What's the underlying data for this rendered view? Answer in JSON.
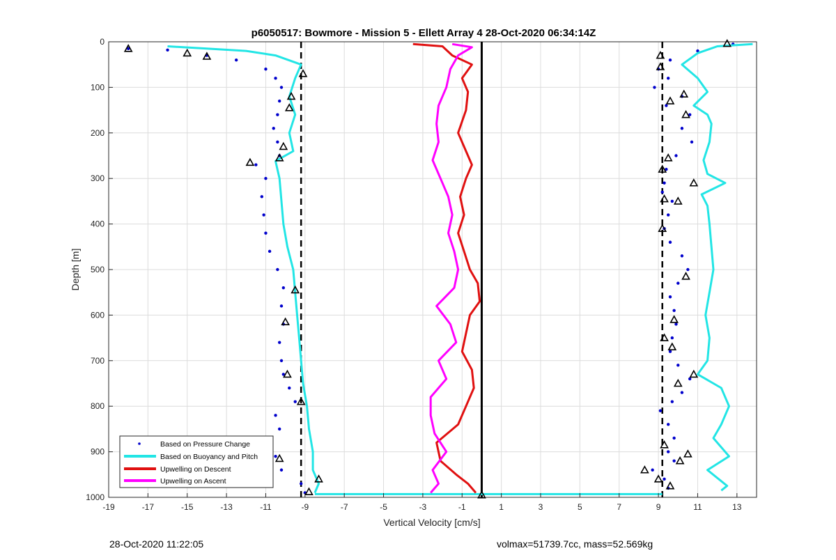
{
  "chart_data": {
    "type": "line",
    "title": "p6050517: Bowmore - Mission 5 - Ellett Array 4 28-Oct-2020 06:34:14Z",
    "xlabel": "Vertical Velocity [cm/s]",
    "ylabel": "Depth [m]",
    "xlim": [
      -19,
      14
    ],
    "ylim": [
      0,
      1000
    ],
    "y_reversed": true,
    "grid": true,
    "legend_position": "bottom-left",
    "xticks": [
      -19,
      -17,
      -15,
      -13,
      -11,
      -9,
      -7,
      -5,
      -3,
      -1,
      1,
      3,
      5,
      7,
      9,
      11,
      13
    ],
    "xtick_labels": [
      "-19",
      "-17",
      "-15",
      "-13",
      "-11",
      "-9",
      "-7",
      "-5",
      "-3",
      "-1",
      "1",
      "3",
      "5",
      "7",
      "9",
      "11",
      "13"
    ],
    "yticks": [
      0,
      100,
      200,
      300,
      400,
      500,
      600,
      700,
      800,
      900,
      1000
    ],
    "ytick_labels": [
      "0",
      "100",
      "200",
      "300",
      "400",
      "500",
      "600",
      "700",
      "800",
      "900",
      "1000"
    ],
    "reference_lines": [
      {
        "x": -9.2,
        "style": "dashed",
        "color": "#000000"
      },
      {
        "x": 9.2,
        "style": "dashed",
        "color": "#000000"
      },
      {
        "x": 0,
        "style": "solid",
        "color": "#000000"
      }
    ],
    "series": [
      {
        "name": "Based on Pressure Change",
        "kind": "points",
        "color": "#0000cc",
        "descent": [
          [
            -18,
            15
          ],
          [
            -16,
            18
          ],
          [
            -14,
            30
          ],
          [
            -12.5,
            40
          ],
          [
            -11,
            60
          ],
          [
            -10.5,
            80
          ],
          [
            -10.2,
            100
          ],
          [
            -10.3,
            130
          ],
          [
            -10.4,
            160
          ],
          [
            -10.6,
            190
          ],
          [
            -10.4,
            220
          ],
          [
            -10.3,
            250
          ],
          [
            -11.5,
            270
          ],
          [
            -11,
            300
          ],
          [
            -11.2,
            340
          ],
          [
            -11.1,
            380
          ],
          [
            -11,
            420
          ],
          [
            -10.8,
            460
          ],
          [
            -10.4,
            500
          ],
          [
            -10.1,
            540
          ],
          [
            -10.2,
            580
          ],
          [
            -10.1,
            620
          ],
          [
            -10.3,
            660
          ],
          [
            -10.2,
            700
          ],
          [
            -10.1,
            730
          ],
          [
            -9.8,
            760
          ],
          [
            -9.5,
            790
          ],
          [
            -10.5,
            820
          ],
          [
            -10.3,
            850
          ],
          [
            -10.9,
            880
          ],
          [
            -10.5,
            910
          ],
          [
            -10.2,
            940
          ],
          [
            -9.2,
            970
          ],
          [
            -9,
            990
          ]
        ],
        "ascent": [
          [
            12.8,
            5
          ],
          [
            11,
            20
          ],
          [
            9.6,
            40
          ],
          [
            9,
            60
          ],
          [
            9.5,
            80
          ],
          [
            8.8,
            100
          ],
          [
            10.2,
            120
          ],
          [
            9.4,
            140
          ],
          [
            10.6,
            160
          ],
          [
            10.2,
            190
          ],
          [
            10.7,
            220
          ],
          [
            9.9,
            250
          ],
          [
            9.4,
            280
          ],
          [
            9.3,
            310
          ],
          [
            9.2,
            330
          ],
          [
            9.7,
            350
          ],
          [
            9.5,
            380
          ],
          [
            9.3,
            410
          ],
          [
            9.6,
            440
          ],
          [
            10.2,
            470
          ],
          [
            10.5,
            500
          ],
          [
            10,
            530
          ],
          [
            9.6,
            560
          ],
          [
            9.8,
            590
          ],
          [
            9.9,
            620
          ],
          [
            9.7,
            650
          ],
          [
            9.6,
            680
          ],
          [
            10,
            710
          ],
          [
            10.6,
            740
          ],
          [
            10.2,
            770
          ],
          [
            9.7,
            790
          ],
          [
            9.1,
            810
          ],
          [
            9.5,
            840
          ],
          [
            9.8,
            870
          ],
          [
            9.5,
            900
          ],
          [
            9.8,
            920
          ],
          [
            8.7,
            940
          ],
          [
            9.3,
            960
          ],
          [
            9.5,
            980
          ]
        ]
      },
      {
        "name": "Based on Buoyancy and Pitch",
        "kind": "line",
        "color": "#22e5e5",
        "descent": [
          [
            -16,
            10
          ],
          [
            -14,
            15
          ],
          [
            -12,
            20
          ],
          [
            -10.5,
            30
          ],
          [
            -9.2,
            50
          ],
          [
            -9.5,
            80
          ],
          [
            -9.8,
            120
          ],
          [
            -9.5,
            160
          ],
          [
            -9.8,
            200
          ],
          [
            -9.6,
            240
          ],
          [
            -10.5,
            262
          ],
          [
            -10.3,
            300
          ],
          [
            -10.2,
            350
          ],
          [
            -10.1,
            400
          ],
          [
            -9.9,
            450
          ],
          [
            -9.6,
            500
          ],
          [
            -9.5,
            550
          ],
          [
            -9.4,
            600
          ],
          [
            -9.3,
            650
          ],
          [
            -9.2,
            700
          ],
          [
            -9.1,
            750
          ],
          [
            -8.9,
            800
          ],
          [
            -8.8,
            850
          ],
          [
            -8.6,
            900
          ],
          [
            -8.6,
            940
          ],
          [
            -8.3,
            970
          ],
          [
            -8.5,
            990
          ]
        ],
        "ascent": [
          [
            13.8,
            5
          ],
          [
            12,
            10
          ],
          [
            11,
            25
          ],
          [
            10.2,
            50
          ],
          [
            11,
            80
          ],
          [
            11.5,
            110
          ],
          [
            10.8,
            140
          ],
          [
            11.5,
            160
          ],
          [
            11.7,
            180
          ],
          [
            11.6,
            220
          ],
          [
            11.3,
            260
          ],
          [
            11.5,
            290
          ],
          [
            12.4,
            310
          ],
          [
            11.2,
            335
          ],
          [
            11.5,
            360
          ],
          [
            11.6,
            400
          ],
          [
            11.7,
            450
          ],
          [
            11.8,
            500
          ],
          [
            11.6,
            550
          ],
          [
            11.4,
            600
          ],
          [
            11.6,
            650
          ],
          [
            11.5,
            700
          ],
          [
            11,
            730
          ],
          [
            12.2,
            760
          ],
          [
            12.6,
            800
          ],
          [
            12.2,
            840
          ],
          [
            11.8,
            870
          ],
          [
            12.6,
            910
          ],
          [
            11.5,
            940
          ],
          [
            12.5,
            975
          ],
          [
            12.2,
            985
          ]
        ],
        "bottom_segment": [
          [
            -8.5,
            993
          ],
          [
            9.2,
            993
          ]
        ]
      },
      {
        "name": "Upwelling on Descent",
        "kind": "line",
        "color": "#e01010",
        "values": [
          [
            -3.5,
            5
          ],
          [
            -2,
            10
          ],
          [
            -1.5,
            30
          ],
          [
            -0.5,
            50
          ],
          [
            -1,
            80
          ],
          [
            -0.7,
            110
          ],
          [
            -0.8,
            150
          ],
          [
            -1.2,
            200
          ],
          [
            -0.8,
            240
          ],
          [
            -0.5,
            270
          ],
          [
            -0.8,
            300
          ],
          [
            -1.1,
            340
          ],
          [
            -0.9,
            380
          ],
          [
            -1.2,
            420
          ],
          [
            -0.9,
            460
          ],
          [
            -0.6,
            500
          ],
          [
            -0.2,
            530
          ],
          [
            -0.1,
            570
          ],
          [
            -0.6,
            600
          ],
          [
            -0.8,
            640
          ],
          [
            -1,
            680
          ],
          [
            -0.5,
            720
          ],
          [
            -0.4,
            760
          ],
          [
            -0.8,
            800
          ],
          [
            -1.2,
            840
          ],
          [
            -2.3,
            880
          ],
          [
            -2.1,
            920
          ],
          [
            -1.3,
            950
          ],
          [
            -0.7,
            970
          ],
          [
            -0.3,
            990
          ]
        ]
      },
      {
        "name": "Upwelling on Ascent",
        "kind": "line",
        "color": "#ff00ff",
        "values": [
          [
            -1.5,
            5
          ],
          [
            -0.5,
            12
          ],
          [
            -1.2,
            30
          ],
          [
            -1.6,
            60
          ],
          [
            -1.8,
            100
          ],
          [
            -2.2,
            140
          ],
          [
            -2.3,
            180
          ],
          [
            -2.2,
            220
          ],
          [
            -2.5,
            260
          ],
          [
            -2.1,
            300
          ],
          [
            -1.7,
            340
          ],
          [
            -1.5,
            380
          ],
          [
            -1.7,
            420
          ],
          [
            -1.4,
            460
          ],
          [
            -1.2,
            500
          ],
          [
            -1.4,
            540
          ],
          [
            -2.3,
            580
          ],
          [
            -1.6,
            620
          ],
          [
            -1.3,
            660
          ],
          [
            -2.2,
            700
          ],
          [
            -1.8,
            740
          ],
          [
            -2.6,
            780
          ],
          [
            -2.6,
            820
          ],
          [
            -2.4,
            860
          ],
          [
            -1.8,
            900
          ],
          [
            -2.5,
            940
          ],
          [
            -2.2,
            970
          ],
          [
            -2.6,
            990
          ]
        ]
      }
    ],
    "markers": {
      "kind": "triangles",
      "color": "#000000",
      "points": [
        [
          -18,
          15
        ],
        [
          -15,
          25
        ],
        [
          -14,
          32
        ],
        [
          -9.1,
          70
        ],
        [
          -9.7,
          120
        ],
        [
          -9.8,
          145
        ],
        [
          -10.1,
          230
        ],
        [
          -10.3,
          255
        ],
        [
          -11.8,
          265
        ],
        [
          -9.5,
          545
        ],
        [
          -10,
          615
        ],
        [
          -9.9,
          730
        ],
        [
          -9.2,
          790
        ],
        [
          -10.3,
          915
        ],
        [
          -8.3,
          960
        ],
        [
          -8.8,
          988
        ],
        [
          12.5,
          4
        ],
        [
          9.1,
          30
        ],
        [
          9.1,
          55
        ],
        [
          10.3,
          115
        ],
        [
          9.6,
          130
        ],
        [
          10.4,
          160
        ],
        [
          9.5,
          255
        ],
        [
          9.2,
          280
        ],
        [
          10.8,
          310
        ],
        [
          9.3,
          345
        ],
        [
          10,
          350
        ],
        [
          9.2,
          410
        ],
        [
          10.4,
          515
        ],
        [
          9.8,
          610
        ],
        [
          9.3,
          650
        ],
        [
          9.7,
          670
        ],
        [
          10.8,
          730
        ],
        [
          10,
          750
        ],
        [
          9.3,
          885
        ],
        [
          10.5,
          905
        ],
        [
          10.1,
          920
        ],
        [
          8.3,
          940
        ],
        [
          9,
          960
        ],
        [
          9.6,
          975
        ],
        [
          0,
          995
        ]
      ]
    },
    "legend": [
      {
        "label": "Based on Pressure Change",
        "symbol": "dot",
        "color": "#0000cc"
      },
      {
        "label": "Based on Buoyancy and Pitch",
        "symbol": "line",
        "color": "#22e5e5"
      },
      {
        "label": "Upwelling on Descent",
        "symbol": "line",
        "color": "#e01010"
      },
      {
        "label": "Upwelling on Ascent",
        "symbol": "line",
        "color": "#ff00ff"
      }
    ]
  },
  "footer": {
    "timestamp": "28-Oct-2020 11:22:05",
    "stats": "volmax=51739.7cc, mass=52.569kg"
  }
}
